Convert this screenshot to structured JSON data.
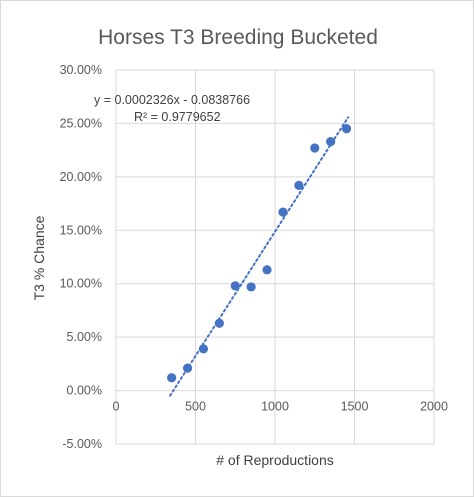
{
  "chart_data": {
    "type": "scatter",
    "title": "Horses T3 Breeding Bucketed",
    "xlabel": "# of Reproductions",
    "ylabel": "T3 % Chance",
    "xlim": [
      0,
      2000
    ],
    "ylim": [
      -0.05,
      0.3
    ],
    "x_ticks": [
      "0",
      "500",
      "1000",
      "1500",
      "2000"
    ],
    "y_ticks": [
      "-5.00%",
      "0.00%",
      "5.00%",
      "10.00%",
      "15.00%",
      "20.00%",
      "25.00%",
      "30.00%"
    ],
    "grid": true,
    "points": [
      {
        "x": 350,
        "y": 0.012
      },
      {
        "x": 450,
        "y": 0.021
      },
      {
        "x": 550,
        "y": 0.039
      },
      {
        "x": 650,
        "y": 0.063
      },
      {
        "x": 750,
        "y": 0.098
      },
      {
        "x": 850,
        "y": 0.097
      },
      {
        "x": 950,
        "y": 0.113
      },
      {
        "x": 1050,
        "y": 0.167
      },
      {
        "x": 1150,
        "y": 0.192
      },
      {
        "x": 1250,
        "y": 0.227
      },
      {
        "x": 1350,
        "y": 0.233
      },
      {
        "x": 1450,
        "y": 0.245
      }
    ],
    "trendline": {
      "slope": 0.0002326,
      "intercept": -0.0838766,
      "x_range": [
        340,
        1460
      ],
      "equation": "y = 0.0002326x - 0.0838766",
      "r_squared": "R² = 0.9779652"
    },
    "colors": {
      "marker": "#4472c4",
      "trendline": "#4472c4",
      "grid": "#d9d9d9"
    }
  }
}
